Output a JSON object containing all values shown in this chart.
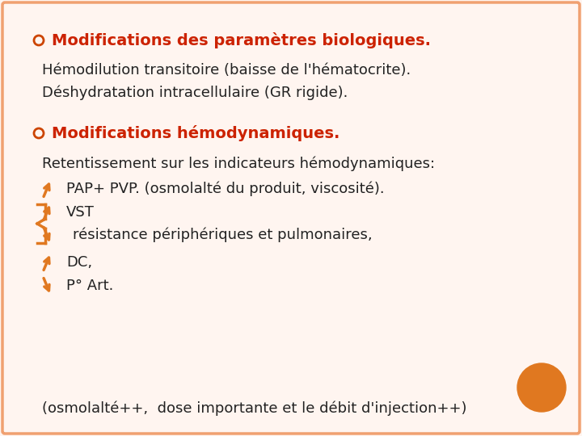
{
  "bg_color": "#fff5f0",
  "border_color": "#f0a070",
  "title1": "Modifications des paramètres biologiques.",
  "title2": "Modifications hémodynamiques.",
  "bullet_color": "#cc4400",
  "heading_color": "#cc2200",
  "text_color": "#222222",
  "orange_color": "#e07820",
  "body1_line1": "Hémodilution transitoire (baisse de l'hématocrite).",
  "body1_line2": "Déshydratation intracellulaire (GR rigide).",
  "body2_line": "Retentissement sur les indicateurs hémodynamiques:",
  "pap_line": "PAP+ PVP. (osmolalté du produit, viscosité).",
  "vst_line": "VST",
  "res_line": "résistance périphériques et pulmonaires,",
  "dc_line": "DC,",
  "part_line": "P° Art.",
  "footer": "(osmolalté++,  dose importante et le débit d'injection++)",
  "circle_color": "#e07820",
  "figsize": [
    7.2,
    5.4
  ],
  "dpi": 100
}
